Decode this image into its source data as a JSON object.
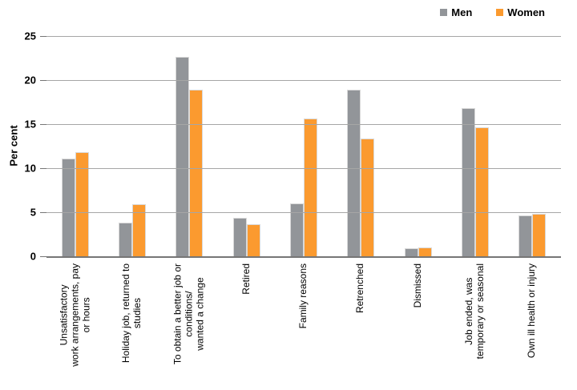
{
  "chart_data": {
    "type": "bar",
    "title": "",
    "ylabel": "Per cent",
    "xlabel": "",
    "ylim": [
      0,
      25
    ],
    "yticks": [
      0,
      5,
      10,
      15,
      20,
      25
    ],
    "grid": true,
    "legend_position": "top-right",
    "categories": [
      "Unsatisfactory\nwork arrangements, pay\nor hours",
      "Holiday job, returned to\nstudies",
      "To obtain a better job or\nconditions/\nwanted a change",
      "Retired",
      "Family reasons",
      "Retrenched",
      "Dismissed",
      "Job ended, was\ntemporary or seasonal",
      "Own ill health or injury"
    ],
    "series": [
      {
        "name": "Men",
        "color": "#929599",
        "values": [
          11.1,
          3.8,
          22.6,
          4.4,
          6.0,
          18.9,
          0.9,
          16.8,
          4.6
        ]
      },
      {
        "name": "Women",
        "color": "#FB9A2F",
        "values": [
          11.8,
          5.9,
          18.9,
          3.6,
          15.6,
          13.4,
          1.0,
          14.6,
          4.8
        ]
      }
    ]
  },
  "colors": {
    "gridline": "#a6a6a6",
    "axis_line": "#767676",
    "men": "#929599",
    "women": "#FB9A2F",
    "text": "#000000"
  }
}
